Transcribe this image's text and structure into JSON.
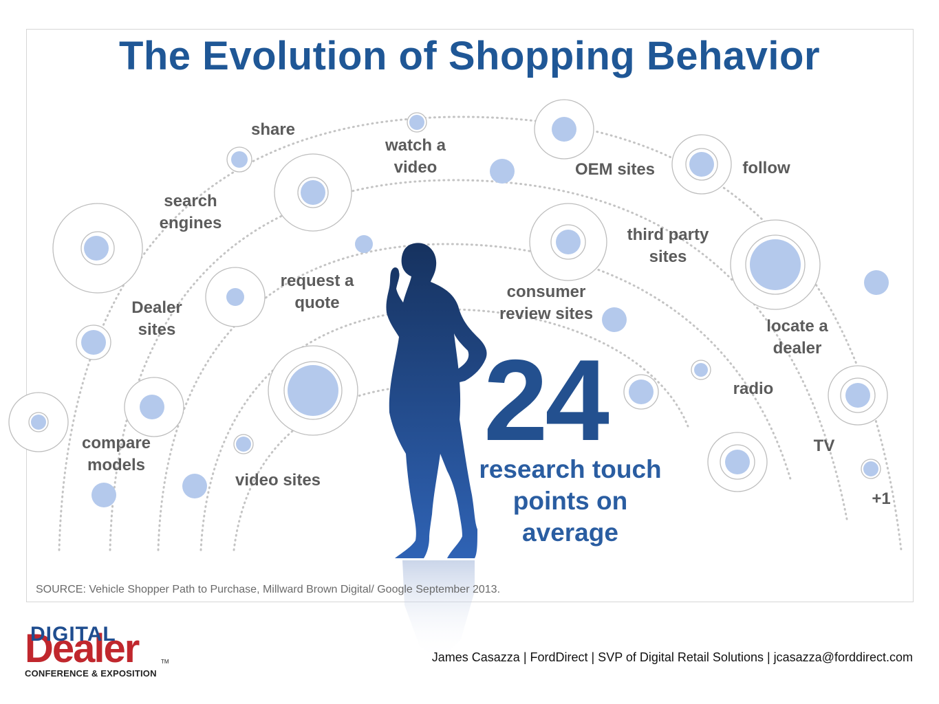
{
  "title": "The Evolution of Shopping Behavior",
  "labels": {
    "share": "share",
    "watch_a_video": [
      "watch a",
      "video"
    ],
    "oem_sites": "OEM sites",
    "follow": "follow",
    "search_engines": [
      "search",
      "engines"
    ],
    "third_party_sites": [
      "third party",
      "sites"
    ],
    "request_a_quote": [
      "request a",
      "quote"
    ],
    "consumer_review_sites": [
      "consumer",
      "review sites"
    ],
    "dealer_sites": [
      "Dealer",
      "sites"
    ],
    "locate_a_dealer": [
      "locate a",
      "dealer"
    ],
    "radio": "radio",
    "compare_models": [
      "compare",
      "models"
    ],
    "tv": "TV",
    "video_sites": "video sites",
    "plus_one": "+1"
  },
  "stat": {
    "number": "24",
    "caption": [
      "research touch",
      "points on",
      "average"
    ]
  },
  "source": "SOURCE: Vehicle Shopper Path to Purchase, Millward Brown Digital/ Google September 2013.",
  "footer": "James Casazza |   FordDirect |   SVP of Digital Retail Solutions |   jcasazza@forddirect.com",
  "logo": {
    "line1": "DIGITAL",
    "line2": "Dealer",
    "line3": "CONFERENCE & EXPOSITION",
    "tm": "TM"
  },
  "colors": {
    "title": "#1f5796",
    "label": "#5b5b5b",
    "dot_fill": "#b4c9ec",
    "silhouette_top": "#16325f",
    "silhouette_bottom": "#2f63b5",
    "logo_red": "#c0272d",
    "logo_blue": "#1f4d8f"
  }
}
